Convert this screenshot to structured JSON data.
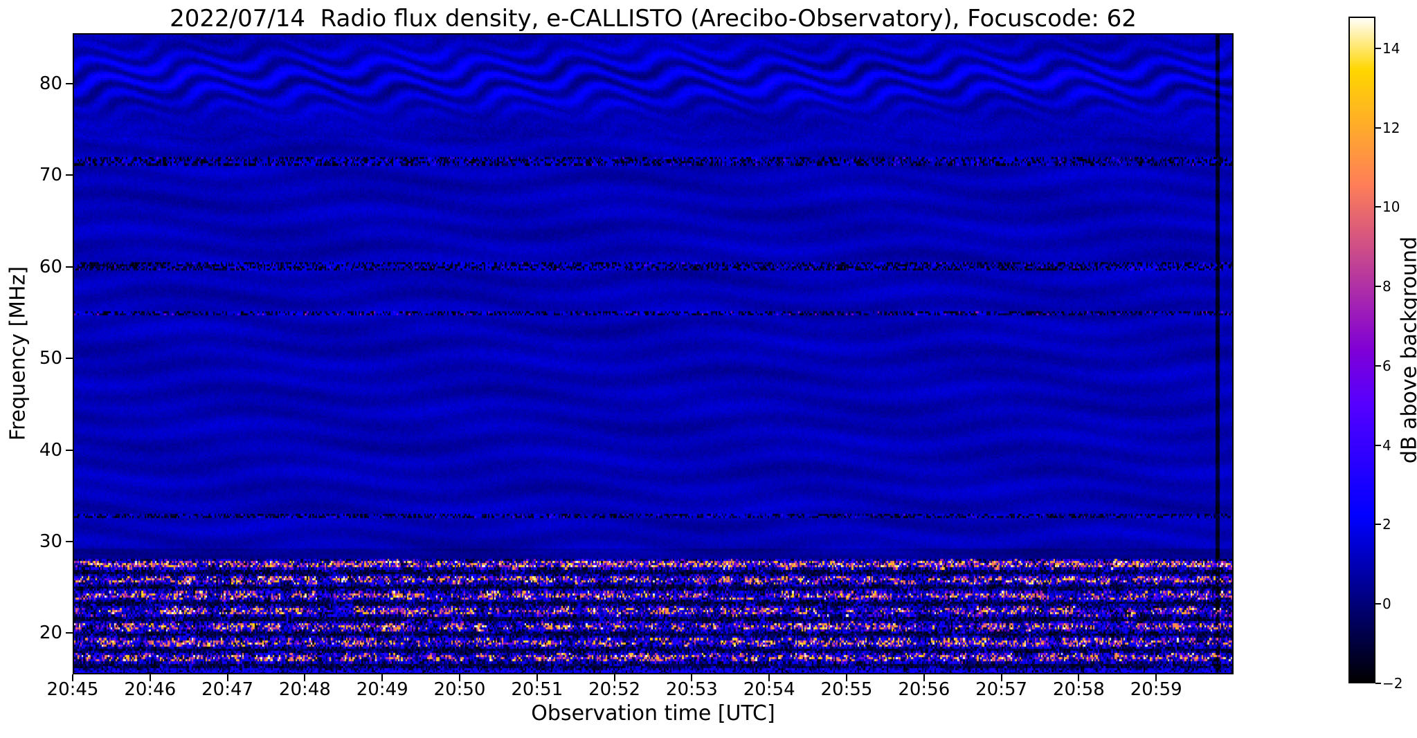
{
  "chart_data": {
    "type": "heatmap",
    "title": "2022/07/14  Radio flux density, e-CALLISTO (Arecibo-Observatory), Focuscode: 62",
    "xlabel": "Observation time [UTC]",
    "ylabel": "Frequency [MHz]",
    "x_tick_labels": [
      "20:45",
      "20:46",
      "20:47",
      "20:48",
      "20:49",
      "20:50",
      "20:51",
      "20:52",
      "20:53",
      "20:54",
      "20:55",
      "20:56",
      "20:57",
      "20:58",
      "20:59"
    ],
    "x_range_utc": [
      "20:45",
      "21:00"
    ],
    "duration_minutes": 15,
    "y_ticks_mhz": [
      20,
      30,
      40,
      50,
      60,
      70,
      80
    ],
    "y_range_mhz": [
      15.5,
      85.5
    ],
    "grid": false,
    "legend": "none",
    "colorbar": {
      "label": "dB above background",
      "ticks_db": [
        -2,
        0,
        2,
        4,
        6,
        8,
        10,
        12,
        14
      ],
      "range_db": [
        -2,
        14.8
      ],
      "colormap": "gnuplot2 (black - blue - violet - magenta - salmon - orange - yellow - white)"
    },
    "regions": {
      "background": {
        "typical_db": 1.0,
        "description": "quiet dark-blue background, roughly 0 to 1.5 dB, covering ~28-73 MHz with faint slow wavy striations"
      },
      "fringe_band": {
        "f_min": 73,
        "f_max": 85.5,
        "amplitude_db": 1.1,
        "wavelength_mhz": 1.9,
        "description": "wavy horizontal interference fringes, strongest near 75-83 MHz"
      },
      "rfi_lines_mhz": [
        {
          "f": 71.5,
          "w": 0.35,
          "peak": 2.5
        },
        {
          "f": 60.1,
          "w": 0.4,
          "peak": 2.5
        },
        {
          "f": 55.0,
          "w": 0.25,
          "peak": 5.0
        },
        {
          "f": 32.8,
          "w": 0.3,
          "peak": 2.0
        }
      ],
      "noisy_band": {
        "f_min": 15.5,
        "f_max": 28.2,
        "peak_db": 15,
        "description": "strong broadband terrestrial RFI speckle below ~28 MHz reaching orange/yellow/white saturation"
      },
      "bright_channel_mhz": 27.5,
      "vertical_dropout_min": 14.78,
      "solar_burst": "none visible"
    }
  }
}
